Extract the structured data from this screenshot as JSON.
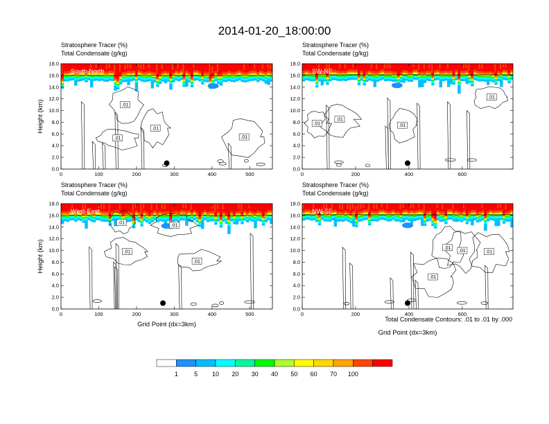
{
  "title": "2014-01-20_18:00:00",
  "legend": {
    "levels": [
      "1",
      "5",
      "10",
      "20",
      "30",
      "40",
      "50",
      "60",
      "70",
      "100"
    ],
    "colors": [
      "#ffffff",
      "#1e90ff",
      "#00bfff",
      "#00ffff",
      "#00fa9a",
      "#00ff00",
      "#adff2f",
      "#ffff00",
      "#ffd700",
      "#ffa500",
      "#ff4500",
      "#ff0000"
    ]
  },
  "contour_note": "Total Condensate Contours: .01 to .01 by .000",
  "chart_data": [
    {
      "type": "contour",
      "label": "South-North",
      "subtitle_line1": "Stratosphere Tracer   (%)",
      "subtitle_line2": "Total Condensate   (g/kg)",
      "ylabel": "Height (km)",
      "xlabel": "",
      "xlim": [
        0,
        560
      ],
      "ylim": [
        0,
        18
      ],
      "xticks": [
        "0",
        "100",
        "200",
        "300",
        "400",
        "500"
      ],
      "xtick_values": [
        0,
        100,
        200,
        300,
        400,
        500
      ],
      "yticks": [
        "0.0",
        "2.0",
        "4.0",
        "6.0",
        "8.0",
        "10.0",
        "12.0",
        "14.0",
        "16.0",
        "18.0"
      ],
      "ytick_values": [
        0,
        2,
        4,
        6,
        8,
        10,
        12,
        14,
        16,
        18
      ],
      "contour_labels": [
        {
          "text": ".01",
          "x": 170,
          "y": 11.0
        },
        {
          "text": ".01",
          "x": 250,
          "y": 7.0
        },
        {
          "text": ".01",
          "x": 150,
          "y": 5.3
        },
        {
          "text": ".01",
          "x": 485,
          "y": 5.5
        }
      ],
      "marker": {
        "x": 280,
        "y": 1.0
      },
      "tropopause_km": 16.0
    },
    {
      "type": "contour",
      "label": "SW-NE",
      "subtitle_line1": "Stratosphere Tracer   (%)",
      "subtitle_line2": "Total Condensate   (g/kg)",
      "ylabel": "",
      "xlabel": "",
      "xlim": [
        0,
        790
      ],
      "ylim": [
        0,
        18
      ],
      "xticks": [
        "0",
        "200",
        "400",
        "600"
      ],
      "xtick_values": [
        0,
        200,
        400,
        600
      ],
      "yticks": [
        "0.0",
        "2.0",
        "4.0",
        "6.0",
        "8.0",
        "10.0",
        "12.0",
        "14.0",
        "16.0",
        "18.0"
      ],
      "ytick_values": [
        0,
        2,
        4,
        6,
        8,
        10,
        12,
        14,
        16,
        18
      ],
      "contour_labels": [
        {
          "text": ".01",
          "x": 710,
          "y": 12.3
        },
        {
          "text": ".01",
          "x": 140,
          "y": 8.5
        },
        {
          "text": ".01",
          "x": 375,
          "y": 7.5
        },
        {
          "text": ".01",
          "x": 55,
          "y": 7.8
        }
      ],
      "marker": {
        "x": 395,
        "y": 1.0
      },
      "tropopause_km": 16.1
    },
    {
      "type": "contour",
      "label": "West-East",
      "subtitle_line1": "Stratosphere Tracer   (%)",
      "subtitle_line2": "Total Condensate   (g/kg)",
      "ylabel": "Height (km)",
      "xlabel": "Grid Point (dx=3km)",
      "xlim": [
        0,
        560
      ],
      "ylim": [
        0,
        18
      ],
      "xticks": [
        "0",
        "100",
        "200",
        "300",
        "400",
        "500"
      ],
      "xtick_values": [
        0,
        100,
        200,
        300,
        400,
        500
      ],
      "yticks": [
        "0.0",
        "2.0",
        "4.0",
        "6.0",
        "8.0",
        "10.0",
        "12.0",
        "14.0",
        "16.0",
        "18.0"
      ],
      "ytick_values": [
        0,
        2,
        4,
        6,
        8,
        10,
        12,
        14,
        16,
        18
      ],
      "contour_labels": [
        {
          "text": ".01",
          "x": 160,
          "y": 14.8
        },
        {
          "text": ".01",
          "x": 300,
          "y": 14.3
        },
        {
          "text": ".01",
          "x": 175,
          "y": 9.8
        },
        {
          "text": ".01",
          "x": 360,
          "y": 8.2
        }
      ],
      "marker": {
        "x": 270,
        "y": 1.0
      },
      "tropopause_km": 16.0
    },
    {
      "type": "contour",
      "label": "NW-SE",
      "subtitle_line1": "Stratosphere Tracer   (%)",
      "subtitle_line2": "Total Condensate   (g/kg)",
      "ylabel": "",
      "xlabel": "Grid Point (dx=3km)",
      "xlim": [
        0,
        790
      ],
      "ylim": [
        0,
        18
      ],
      "xticks": [
        "0",
        "200",
        "400",
        "600"
      ],
      "xtick_values": [
        0,
        200,
        400,
        600
      ],
      "yticks": [
        "0.0",
        "2.0",
        "4.0",
        "6.0",
        "8.0",
        "10.0",
        "12.0",
        "14.0",
        "16.0",
        "18.0"
      ],
      "ytick_values": [
        0,
        2,
        4,
        6,
        8,
        10,
        12,
        14,
        16,
        18
      ],
      "contour_labels": [
        {
          "text": ".01",
          "x": 545,
          "y": 10.5
        },
        {
          "text": ".01",
          "x": 600,
          "y": 10.0
        },
        {
          "text": ".01",
          "x": 490,
          "y": 5.5
        },
        {
          "text": ".01",
          "x": 700,
          "y": 9.8
        }
      ],
      "marker": {
        "x": 395,
        "y": 1.0
      },
      "tropopause_km": 16.1
    }
  ]
}
